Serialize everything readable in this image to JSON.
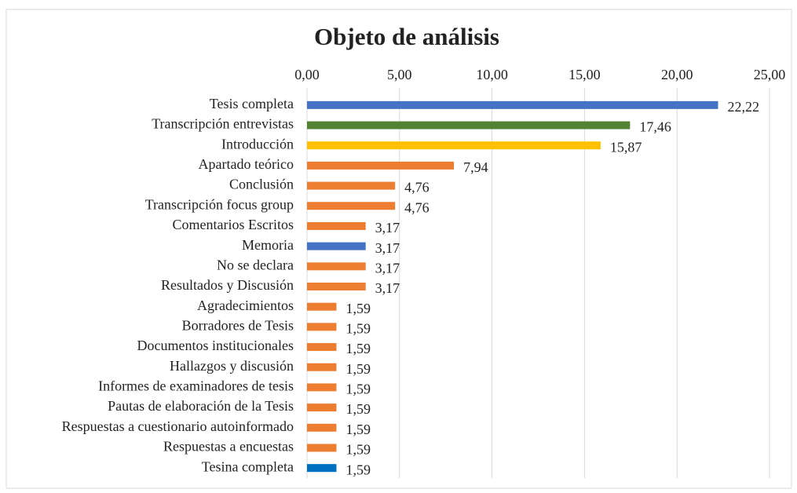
{
  "chart_data": {
    "type": "bar",
    "orientation": "horizontal",
    "title": "Objeto de análisis",
    "categories": [
      "Tesis completa",
      "Transcripción entrevistas",
      "Introducción",
      "Apartado teórico",
      "Conclusión",
      "Transcripción focus group",
      "Comentarios Escritos",
      "Memoria",
      "No se declara",
      "Resultados y Discusión",
      "Agradecimientos",
      "Borradores de Tesis",
      "Documentos institucionales",
      "Hallazgos y discusión",
      "Informes de examinadores de tesis",
      "Pautas de elaboración de la Tesis",
      "Respuestas a cuestionario autoinformado",
      "Respuestas a encuestas",
      "Tesina completa"
    ],
    "values": [
      22.22,
      17.46,
      15.87,
      7.94,
      4.76,
      4.76,
      3.17,
      3.17,
      3.17,
      3.17,
      1.59,
      1.59,
      1.59,
      1.59,
      1.59,
      1.59,
      1.59,
      1.59,
      1.59
    ],
    "value_labels": [
      "22,22",
      "17,46",
      "15,87",
      "7,94",
      "4,76",
      "4,76",
      "3,17",
      "3,17",
      "3,17",
      "3,17",
      "1,59",
      "1,59",
      "1,59",
      "1,59",
      "1,59",
      "1,59",
      "1,59",
      "1,59",
      "1,59"
    ],
    "colors": [
      "#4472c4",
      "#548235",
      "#ffc000",
      "#ed7d31",
      "#ed7d31",
      "#ed7d31",
      "#ed7d31",
      "#4472c4",
      "#ed7d31",
      "#ed7d31",
      "#ed7d31",
      "#ed7d31",
      "#ed7d31",
      "#ed7d31",
      "#ed7d31",
      "#ed7d31",
      "#ed7d31",
      "#ed7d31",
      "#0070c0"
    ],
    "xlim": [
      0,
      25
    ],
    "xticks": [
      {
        "value": 0,
        "label": "0,00"
      },
      {
        "value": 5,
        "label": "5,00"
      },
      {
        "value": 10,
        "label": "10,00"
      },
      {
        "value": 15,
        "label": "15,00"
      },
      {
        "value": 20,
        "label": "20,00"
      },
      {
        "value": 25,
        "label": "25,00"
      }
    ],
    "grid": true
  }
}
